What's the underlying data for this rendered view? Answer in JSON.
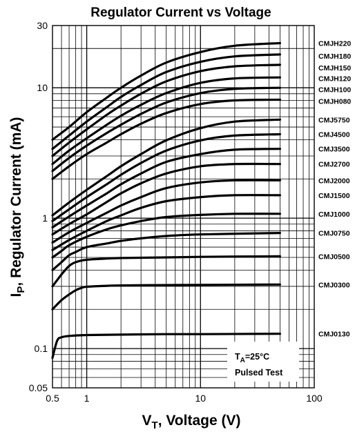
{
  "chart_data": {
    "type": "line",
    "title": "Regulator Current vs Voltage",
    "xlabel": {
      "main": "V",
      "sub": "T",
      "rest": ", Voltage (V)"
    },
    "ylabel": {
      "main": "I",
      "sub": "P",
      "rest": ", Regulator Current (mA)"
    },
    "x_scale": "log",
    "y_scale": "log",
    "xlim": [
      0.5,
      100
    ],
    "ylim": [
      0.05,
      30
    ],
    "x_ticks": [
      {
        "value": 0.5,
        "label": "0.5"
      },
      {
        "value": 1,
        "label": "1"
      },
      {
        "value": 10,
        "label": "10"
      },
      {
        "value": 100,
        "label": "100"
      }
    ],
    "y_ticks": [
      {
        "value": 0.05,
        "label": "0.05"
      },
      {
        "value": 0.1,
        "label": "0.1"
      },
      {
        "value": 1,
        "label": "1"
      },
      {
        "value": 10,
        "label": "10"
      },
      {
        "value": 30,
        "label": "30"
      }
    ],
    "grid": true,
    "x_end": 50,
    "series": [
      {
        "name": "CMJ0130",
        "x": [
          0.5,
          0.55,
          0.6,
          0.7,
          1,
          2,
          5,
          10,
          50
        ],
        "y": [
          0.085,
          0.115,
          0.122,
          0.125,
          0.127,
          0.128,
          0.129,
          0.129,
          0.13
        ]
      },
      {
        "name": "CMJ0300",
        "x": [
          0.5,
          0.6,
          0.7,
          0.8,
          0.9,
          1,
          1.5,
          2,
          5,
          10,
          50
        ],
        "y": [
          0.2,
          0.235,
          0.26,
          0.28,
          0.292,
          0.298,
          0.303,
          0.305,
          0.307,
          0.308,
          0.31
        ]
      },
      {
        "name": "CMJ0500",
        "x": [
          0.5,
          0.6,
          0.7,
          0.8,
          1,
          1.5,
          2,
          5,
          10,
          50
        ],
        "y": [
          0.3,
          0.37,
          0.43,
          0.46,
          0.48,
          0.49,
          0.495,
          0.5,
          0.505,
          0.51
        ]
      },
      {
        "name": "CMJ0750",
        "x": [
          0.5,
          0.6,
          0.7,
          0.8,
          1,
          1.5,
          2,
          3,
          5,
          10,
          50
        ],
        "y": [
          0.4,
          0.46,
          0.52,
          0.55,
          0.6,
          0.64,
          0.67,
          0.7,
          0.73,
          0.75,
          0.77
        ]
      },
      {
        "name": "CMJ1000",
        "x": [
          0.5,
          0.6,
          0.7,
          1,
          1.5,
          2,
          3,
          5,
          10,
          20,
          50
        ],
        "y": [
          0.5,
          0.56,
          0.62,
          0.72,
          0.82,
          0.88,
          0.95,
          1.02,
          1.06,
          1.08,
          1.08
        ]
      },
      {
        "name": "CMJ1500",
        "x": [
          0.5,
          0.7,
          1,
          1.5,
          2,
          3,
          5,
          10,
          20,
          50
        ],
        "y": [
          0.57,
          0.68,
          0.8,
          0.95,
          1.05,
          1.2,
          1.35,
          1.45,
          1.5,
          1.5
        ]
      },
      {
        "name": "CMJ2000",
        "x": [
          0.5,
          0.7,
          1,
          1.5,
          2,
          3,
          5,
          10,
          20,
          50
        ],
        "y": [
          0.65,
          0.78,
          0.92,
          1.1,
          1.25,
          1.45,
          1.7,
          1.88,
          1.95,
          1.95
        ]
      },
      {
        "name": "CMJ2700",
        "x": [
          0.5,
          0.7,
          1,
          1.5,
          2,
          3,
          5,
          10,
          20,
          50
        ],
        "y": [
          0.75,
          0.9,
          1.07,
          1.33,
          1.55,
          1.85,
          2.2,
          2.5,
          2.6,
          2.6
        ]
      },
      {
        "name": "CMJ3500",
        "x": [
          0.5,
          0.7,
          1,
          1.5,
          2,
          3,
          5,
          10,
          20,
          50
        ],
        "y": [
          0.85,
          1.03,
          1.25,
          1.55,
          1.82,
          2.2,
          2.7,
          3.1,
          3.35,
          3.4
        ]
      },
      {
        "name": "CMJ4500",
        "x": [
          0.5,
          0.7,
          1,
          1.5,
          2,
          3,
          5,
          10,
          20,
          50
        ],
        "y": [
          0.95,
          1.17,
          1.45,
          1.82,
          2.15,
          2.65,
          3.3,
          3.95,
          4.3,
          4.4
        ]
      },
      {
        "name": "CMJ5750",
        "x": [
          0.5,
          0.7,
          1,
          1.5,
          2,
          3,
          5,
          10,
          20,
          50
        ],
        "y": [
          1.05,
          1.32,
          1.65,
          2.1,
          2.5,
          3.1,
          3.95,
          4.9,
          5.5,
          5.7
        ]
      },
      {
        "name": "CMJH080",
        "x": [
          0.5,
          0.7,
          1,
          1.5,
          2,
          3,
          5,
          10,
          20,
          50
        ],
        "y": [
          2.0,
          2.5,
          3.1,
          3.8,
          4.4,
          5.3,
          6.4,
          7.5,
          8.0,
          8.1
        ]
      },
      {
        "name": "CMJH100",
        "x": [
          0.5,
          0.7,
          1,
          1.5,
          2,
          3,
          5,
          10,
          20,
          50
        ],
        "y": [
          2.3,
          2.9,
          3.6,
          4.5,
          5.2,
          6.3,
          7.7,
          9.1,
          9.8,
          10.0
        ]
      },
      {
        "name": "CMJH120",
        "x": [
          0.5,
          0.7,
          1,
          1.5,
          2,
          3,
          5,
          10,
          20,
          50
        ],
        "y": [
          2.6,
          3.3,
          4.1,
          5.2,
          6.1,
          7.4,
          9.1,
          10.9,
          11.8,
          12.0
        ]
      },
      {
        "name": "CMJH150",
        "x": [
          0.5,
          0.7,
          1,
          1.5,
          2,
          3,
          5,
          10,
          20,
          50
        ],
        "y": [
          3.0,
          3.8,
          4.8,
          6.2,
          7.3,
          9.0,
          11.2,
          13.4,
          14.6,
          15.0
        ]
      },
      {
        "name": "CMJH180",
        "x": [
          0.5,
          0.7,
          1,
          1.5,
          2,
          3,
          5,
          10,
          20,
          50
        ],
        "y": [
          3.4,
          4.3,
          5.5,
          7.1,
          8.5,
          10.5,
          13.2,
          15.8,
          17.4,
          18.0
        ]
      },
      {
        "name": "CMJH220",
        "x": [
          0.5,
          0.7,
          1,
          1.5,
          2,
          3,
          5,
          10,
          20,
          50
        ],
        "y": [
          4.0,
          5.0,
          6.5,
          8.4,
          10.0,
          12.4,
          15.6,
          18.8,
          21.0,
          22.0
        ]
      }
    ],
    "labels": [
      {
        "text": "CMJH220",
        "y": 22.0
      },
      {
        "text": "CMJH180",
        "y": 17.5
      },
      {
        "text": "CMJH150",
        "y": 14.3
      },
      {
        "text": "CMJH120",
        "y": 11.8
      },
      {
        "text": "CMJH100",
        "y": 9.7
      },
      {
        "text": "CMJH080",
        "y": 7.9
      },
      {
        "text": "CMJ5750",
        "y": 5.7
      },
      {
        "text": "CMJ4500",
        "y": 4.4
      },
      {
        "text": "CMJ3500",
        "y": 3.4
      },
      {
        "text": "CMJ2700",
        "y": 2.6
      },
      {
        "text": "CMJ2000",
        "y": 1.95
      },
      {
        "text": "CMJ1500",
        "y": 1.5
      },
      {
        "text": "CMJ1000",
        "y": 1.08
      },
      {
        "text": "CMJ0750",
        "y": 0.77
      },
      {
        "text": "CMJ0500",
        "y": 0.51
      },
      {
        "text": "CMJ0300",
        "y": 0.31
      },
      {
        "text": "CMJ0130",
        "y": 0.13
      }
    ],
    "annotation": {
      "line1_main": "T",
      "line1_sub": "A",
      "line1_rest": "=25°C",
      "line2": "Pulsed Test"
    }
  }
}
